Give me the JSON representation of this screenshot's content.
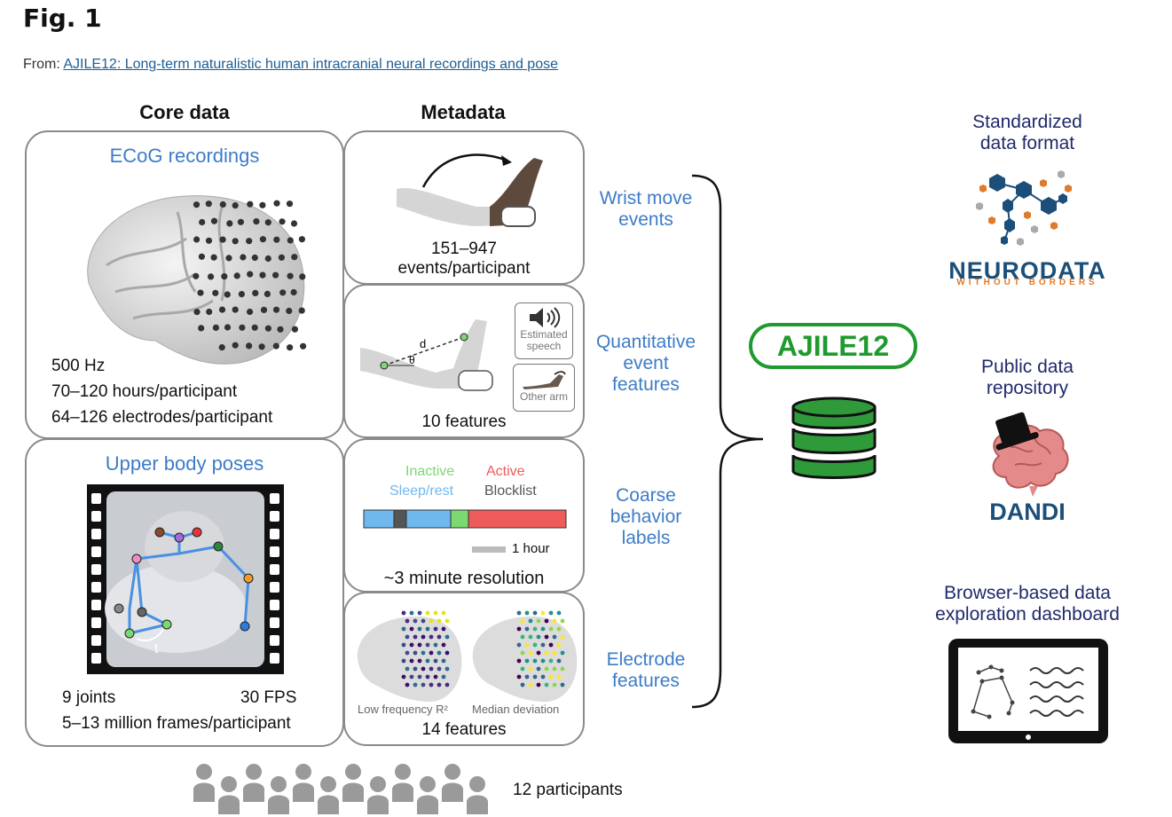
{
  "header": {
    "figure_title": "Fig. 1",
    "from_prefix": "From:",
    "from_link": "AJILE12: Long-term naturalistic human intracranial neural recordings and pose"
  },
  "columns": {
    "core": "Core data",
    "meta": "Metadata"
  },
  "core": {
    "ecog": {
      "title": "ECoG recordings",
      "rate": "500 Hz",
      "hours": "70–120 hours/participant",
      "electrodes": "64–126 electrodes/participant"
    },
    "poses": {
      "title": "Upper body poses",
      "joints": "9 joints",
      "fps": "30 FPS",
      "frames": "5–13 million frames/participant",
      "time_label": "t"
    }
  },
  "meta": {
    "wrist": {
      "caption_line1": "151–947",
      "caption_line2": "events/participant"
    },
    "quant": {
      "caption": "10 features",
      "d_label": "d",
      "theta_label": "θ",
      "speech_label_1": "Estimated",
      "speech_label_2": "speech",
      "other_arm_label": "Other arm"
    },
    "coarse": {
      "inactive": "Inactive",
      "active": "Active",
      "sleep": "Sleep/rest",
      "blocklist": "Blocklist",
      "scale": "1 hour",
      "caption": "~3 minute resolution",
      "colors": {
        "inactive": "#7bd96f",
        "active": "#ef5b5b",
        "sleep": "#6fb8ee",
        "blocklist": "#555555"
      }
    },
    "electrode": {
      "caption": "14 features",
      "left_label": "Low frequency R²",
      "right_label": "Median deviation"
    }
  },
  "side_labels": {
    "wrist": [
      "Wrist move",
      "events"
    ],
    "quant": [
      "Quantitative",
      "event",
      "features"
    ],
    "coarse": [
      "Coarse",
      "behavior",
      "labels"
    ],
    "electrode": [
      "Electrode",
      "features"
    ]
  },
  "center": {
    "badge": "AJILE12",
    "accent": "#1f9a2e"
  },
  "right": {
    "nwb_heading": [
      "Standardized",
      "data format"
    ],
    "nwb_logo_main": "NEURODATA",
    "nwb_logo_sub": "WITHOUT BORDERS",
    "repo_heading": [
      "Public data",
      "repository"
    ],
    "dandi_logo": "DANDI",
    "dash_heading": [
      "Browser-based data",
      "exploration dashboard"
    ]
  },
  "participants": {
    "label": "12 participants",
    "count": 12
  }
}
